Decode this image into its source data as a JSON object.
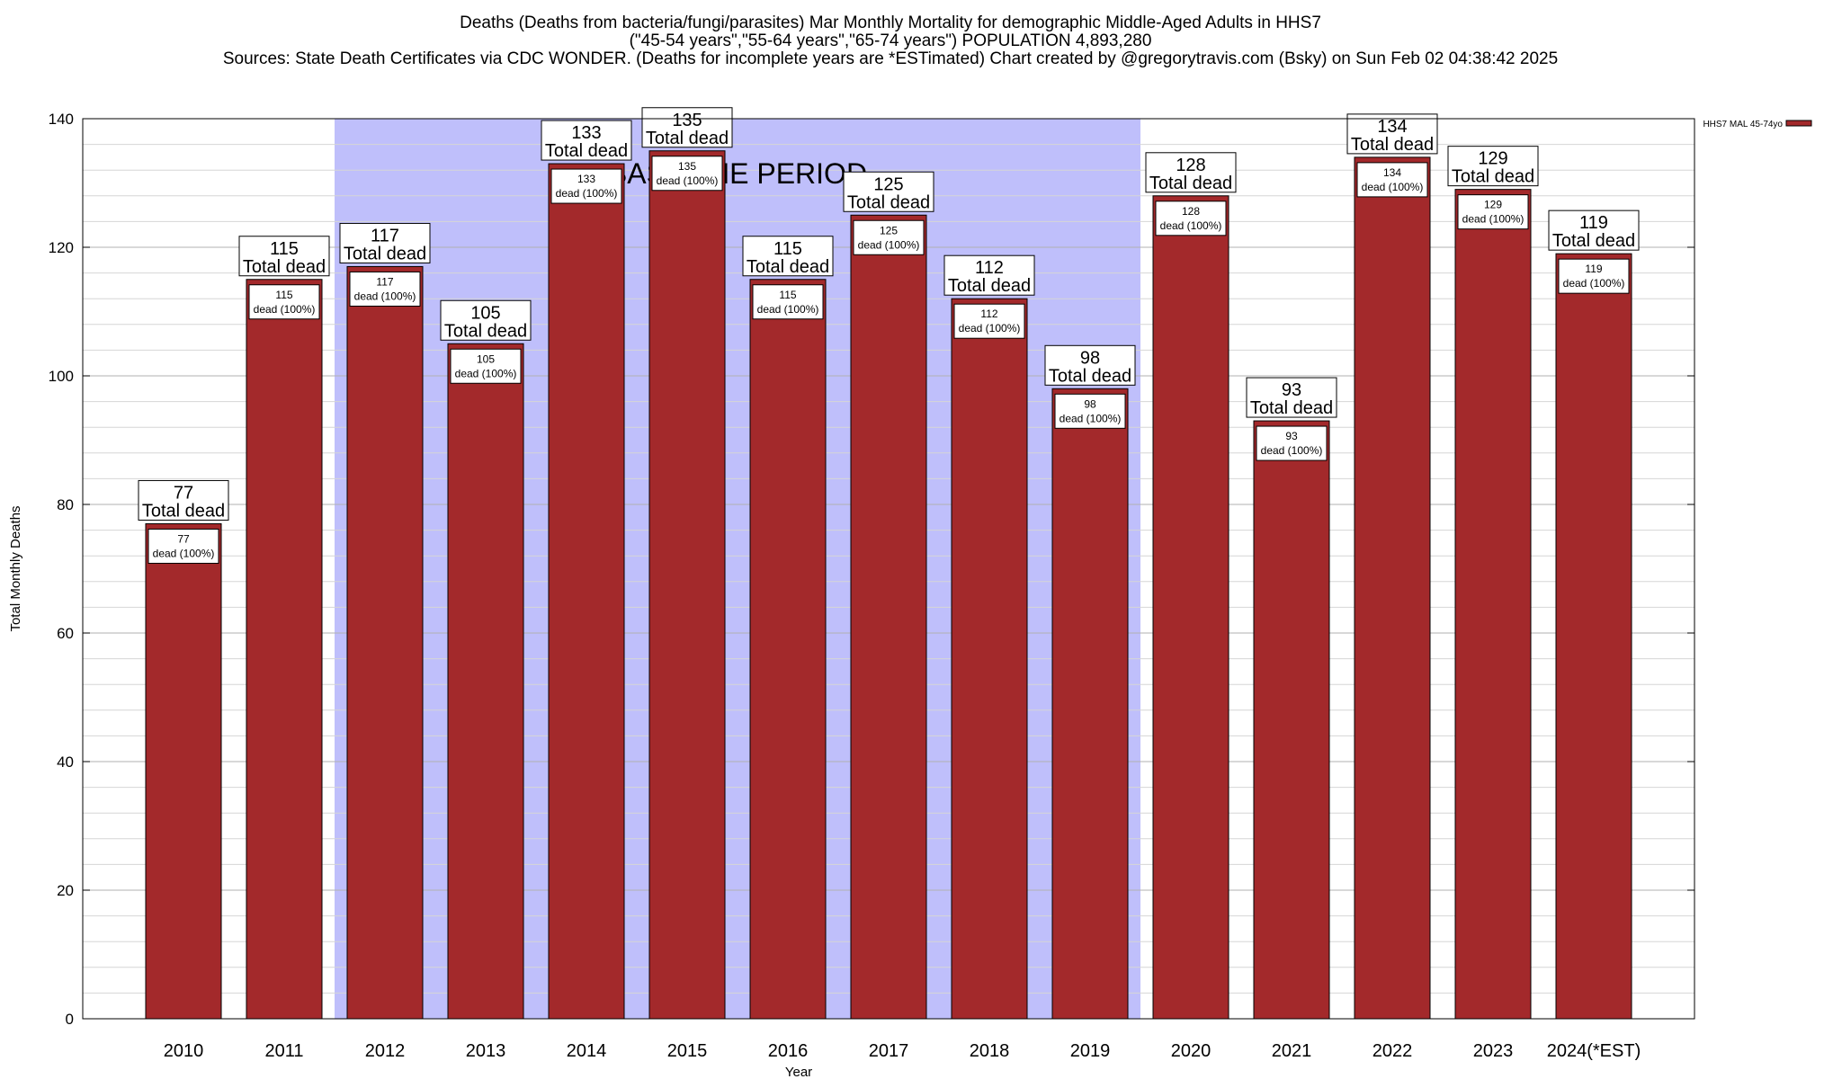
{
  "title": {
    "line1": "Deaths (Deaths from bacteria/fungi/parasites) Mar Monthly Mortality for demographic Middle-Aged Adults in HHS7",
    "line2": "(\"45-54 years\",\"55-64 years\",\"65-74 years\") POPULATION 4,893,280",
    "line3": "Sources: State Death Certificates via CDC WONDER. (Deaths for incomplete years are *ESTimated)                 Chart created by @gregorytravis.com (Bsky) on Sun Feb 02 04:38:42 2025"
  },
  "chart_data": {
    "type": "bar",
    "xlabel": "Year",
    "ylabel": "Total Monthly Deaths",
    "ylim": [
      0,
      140
    ],
    "yticks": [
      0,
      20,
      40,
      60,
      80,
      100,
      120,
      140
    ],
    "grid": true,
    "legend_position": "top-right",
    "bar_color": "#a3292b",
    "baseline_color": "#bfbffb",
    "categories": [
      "2010",
      "2011",
      "2012",
      "2013",
      "2014",
      "2015",
      "2016",
      "2017",
      "2018",
      "2019",
      "2020",
      "2021",
      "2022",
      "2023",
      "2024(*EST)"
    ],
    "series": [
      {
        "name": "HHS7 MAL 45-74yo",
        "values": [
          77,
          115,
          117,
          105,
          133,
          135,
          115,
          125,
          112,
          98,
          128,
          93,
          134,
          129,
          119
        ]
      }
    ],
    "total_label_suffix": "Total dead",
    "inner_label_suffix": "dead (100%)",
    "baseline": {
      "label": "BASELINE PERIOD",
      "start_category": "2012",
      "end_category": "2019"
    }
  }
}
